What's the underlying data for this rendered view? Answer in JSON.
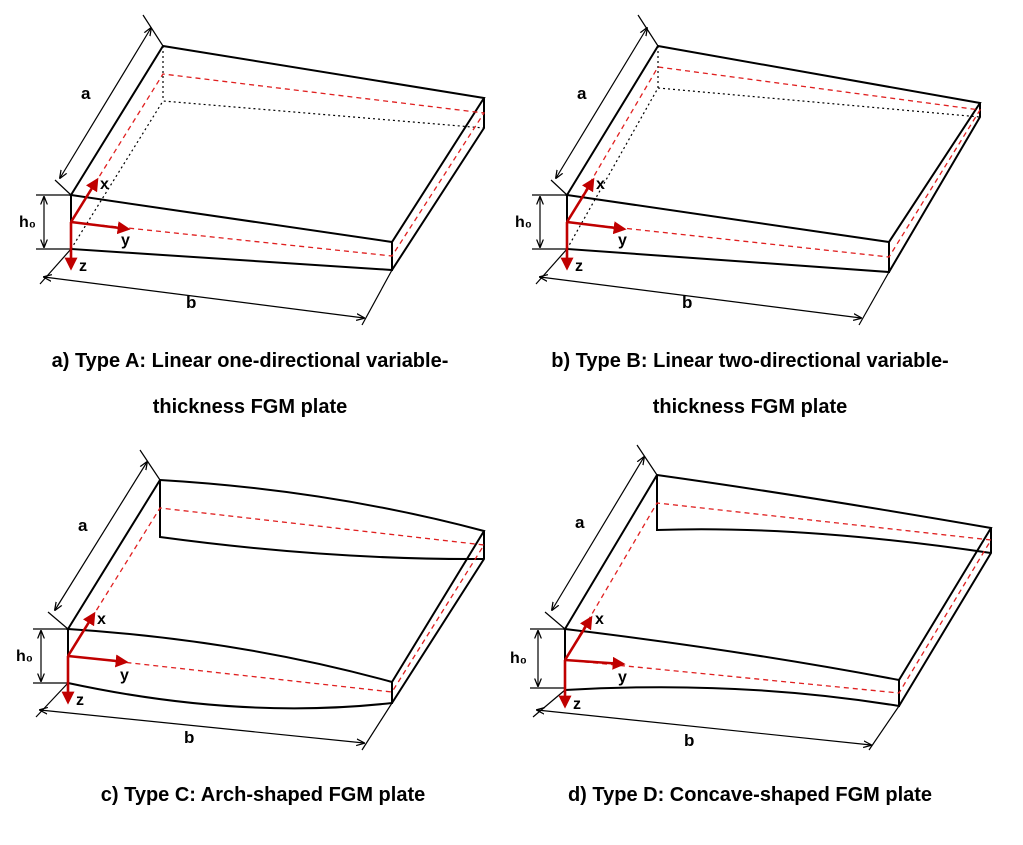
{
  "panels": [
    {
      "id": "a",
      "caption_line1": "a) Type A: Linear one-directional variable-",
      "caption_line2": "thickness FGM plate",
      "labels": {
        "a": "a",
        "b": "b",
        "h0": "h₀",
        "x": "x",
        "y": "y",
        "z": "z"
      }
    },
    {
      "id": "b",
      "caption_line1": "b) Type B: Linear two-directional variable-",
      "caption_line2": "thickness FGM plate",
      "labels": {
        "a": "a",
        "b": "b",
        "h0": "h₀",
        "x": "x",
        "y": "y",
        "z": "z"
      }
    },
    {
      "id": "c",
      "caption_line1": "c) Type C: Arch-shaped FGM plate",
      "caption_line2": "",
      "labels": {
        "a": "a",
        "b": "b",
        "h0": "h₀",
        "x": "x",
        "y": "y",
        "z": "z"
      }
    },
    {
      "id": "d",
      "caption_line1": "d) Type D: Concave-shaped FGM plate",
      "caption_line2": "",
      "labels": {
        "a": "a",
        "b": "b",
        "h0": "h₀",
        "x": "x",
        "y": "y",
        "z": "z"
      }
    }
  ],
  "colors": {
    "axes": "#c00000",
    "midplane": "#e02020",
    "edges": "#000000"
  }
}
